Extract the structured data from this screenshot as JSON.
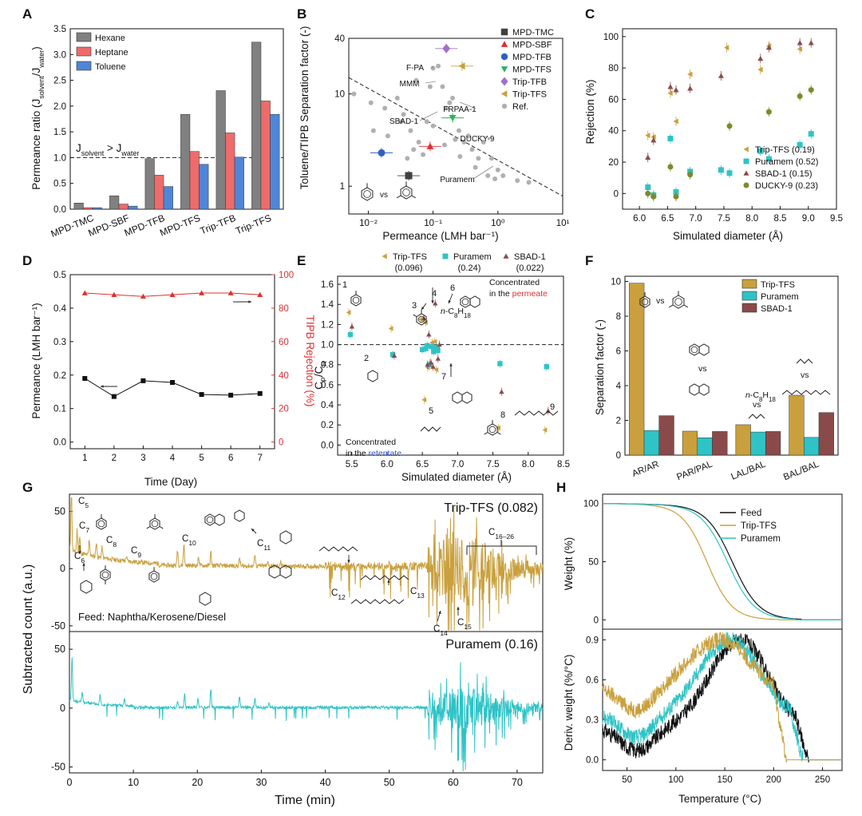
{
  "panel_letters": {
    "a": "A",
    "b": "B",
    "c": "C",
    "d": "D",
    "e": "E",
    "f": "F",
    "g": "G",
    "h": "H"
  },
  "colors": {
    "hexane": "#808080",
    "heptane": "#ee6b6b",
    "toluene": "#4f86d9",
    "trip_tfs": "#c9a03d",
    "puramem": "#2fc3c6",
    "sbad1": "#8a4a4a",
    "ducky9": "#7c8a2a",
    "mpd_tmc": "#404040",
    "mpd_sbf": "#e03030",
    "mpd_tfb": "#3060c0",
    "mpd_tfs": "#30b060",
    "trip_tfb": "#a070c8",
    "ref": "#b0b0b0",
    "feed": "#111111",
    "red": "#e03030",
    "blue": "#2e54c8"
  },
  "chart_data": [
    {
      "panel": "A",
      "type": "bar",
      "categories": [
        "MPD-TMC",
        "MPD-SBF",
        "MPD-TFB",
        "MPD-TFS",
        "Trip-TFB",
        "Trip-TFS"
      ],
      "series": [
        {
          "name": "Hexane",
          "values": [
            0.12,
            0.26,
            0.98,
            1.84,
            2.3,
            3.24
          ]
        },
        {
          "name": "Heptane",
          "values": [
            0.03,
            0.1,
            0.66,
            1.12,
            1.48,
            2.1
          ]
        },
        {
          "name": "Toluene",
          "values": [
            0.03,
            0.06,
            0.44,
            0.87,
            1.01,
            1.84
          ]
        }
      ],
      "ylabel_main": "Permeance ratio (J",
      "ylabel_s1": "solvent",
      "ylabel_mid": "/J",
      "ylabel_s2": "water",
      "ylabel_end": ")",
      "ylim": [
        0,
        3.5
      ],
      "yticks": [
        "0.0",
        "0.5",
        "1.0",
        "1.5",
        "2.0",
        "2.5",
        "3.0",
        "3.5"
      ],
      "reference_line": 1.0,
      "annotation_main": "J",
      "annotation_s1": "solvent",
      "annotation_mid": " > J",
      "annotation_s2": "water"
    },
    {
      "panel": "B",
      "type": "scatter",
      "xscale": "log",
      "yscale": "log",
      "xlabel": "Permeance (LMH bar⁻¹)",
      "ylabel": "Toluene/TIPB Separation factor (-)",
      "xlim": [
        0.005,
        10
      ],
      "ylim": [
        0.5,
        40
      ],
      "xticks": [
        {
          "v": 0.01,
          "t": "10⁻²"
        },
        {
          "v": 0.1,
          "t": "10⁻¹"
        },
        {
          "v": 1,
          "t": "10⁰"
        },
        {
          "v": 10,
          "t": "10¹"
        }
      ],
      "yticks": [
        {
          "v": 1,
          "t": "1"
        },
        {
          "v": 10,
          "t": "10"
        },
        {
          "v": 40,
          "t": "40"
        }
      ],
      "series": [
        {
          "name": "MPD-TMC",
          "x": 0.042,
          "y": 1.3
        },
        {
          "name": "MPD-SBF",
          "x": 0.09,
          "y": 2.7
        },
        {
          "name": "MPD-TFB",
          "x": 0.016,
          "y": 2.3
        },
        {
          "name": "MPD-TFS",
          "x": 0.2,
          "y": 5.5
        },
        {
          "name": "Trip-TFB",
          "x": 0.16,
          "y": 31
        },
        {
          "name": "Trip-TFS",
          "x": 0.28,
          "y": 20
        },
        {
          "name": "Ref.",
          "points": [
            [
              0.006,
              10
            ],
            [
              0.011,
              8
            ],
            [
              0.018,
              7
            ],
            [
              0.028,
              9
            ],
            [
              0.035,
              6
            ],
            [
              0.012,
              4
            ],
            [
              0.02,
              3.5
            ],
            [
              0.045,
              4
            ],
            [
              0.06,
              3
            ],
            [
              0.08,
              5
            ],
            [
              0.1,
              4.5
            ],
            [
              0.12,
              20
            ],
            [
              0.1,
              19
            ],
            [
              0.14,
              12
            ],
            [
              0.16,
              7
            ],
            [
              0.18,
              8
            ],
            [
              0.2,
              9
            ],
            [
              0.25,
              4
            ],
            [
              0.3,
              3
            ],
            [
              0.35,
              3.5
            ],
            [
              0.4,
              2.5
            ],
            [
              0.5,
              2
            ],
            [
              0.6,
              3
            ],
            [
              0.8,
              2
            ],
            [
              1.0,
              1.5
            ],
            [
              1.2,
              1.3
            ],
            [
              0.04,
              2
            ],
            [
              0.05,
              2.5
            ],
            [
              0.07,
              2.2
            ],
            [
              0.15,
              2.8
            ],
            [
              0.22,
              3.2
            ],
            [
              0.26,
              2.1
            ],
            [
              0.45,
              1.6
            ],
            [
              0.7,
              1.3
            ],
            [
              2.0,
              1.15
            ],
            [
              3.0,
              1.1
            ],
            [
              0.9,
              1.2
            ],
            [
              0.032,
              5
            ],
            [
              0.055,
              14
            ],
            [
              0.09,
              12
            ]
          ]
        }
      ],
      "ref_labels": [
        "F-PA",
        "MMM",
        "SBAD-1",
        "FRPAA-1",
        "DUCKY-9",
        "Puramem"
      ],
      "inset_vs": "vs"
    },
    {
      "panel": "C",
      "type": "scatter",
      "xlabel": "Simulated diameter (Å)",
      "ylabel": "Rejection (%)",
      "xlim": [
        5.5,
        9.5
      ],
      "ylim": [
        -10,
        105
      ],
      "xticks": [
        "6.0",
        "6.5",
        "7.0",
        "7.5",
        "8.0",
        "8.5",
        "9.0",
        "9.5"
      ],
      "yticks": [
        "0",
        "20",
        "40",
        "60",
        "80",
        "100"
      ],
      "series": [
        {
          "name": "Trip-TFS (0.19)",
          "x": [
            6.15,
            6.25,
            6.55,
            6.65,
            6.9,
            7.55,
            8.15,
            8.3,
            8.85
          ],
          "y": [
            37,
            36,
            64,
            46,
            76,
            93,
            79,
            94,
            92
          ]
        },
        {
          "name": "Puramem (0.52)",
          "x": [
            6.15,
            6.25,
            6.55,
            6.65,
            6.9,
            7.45,
            7.6,
            8.15,
            8.3,
            8.85,
            9.05
          ],
          "y": [
            4,
            -1,
            35,
            1,
            14,
            15,
            13,
            27,
            22,
            31,
            38
          ]
        },
        {
          "name": "SBAD-1 (0.15)",
          "x": [
            6.15,
            6.25,
            6.55,
            6.65,
            6.9,
            7.45,
            8.15,
            8.3,
            8.85,
            9.05
          ],
          "y": [
            23,
            34,
            68,
            66,
            67,
            75,
            86,
            93,
            96,
            96
          ]
        },
        {
          "name": "DUCKY-9 (0.23)",
          "x": [
            6.15,
            6.25,
            6.55,
            6.65,
            6.9,
            7.6,
            8.3,
            8.85,
            9.05
          ],
          "y": [
            0,
            -2,
            17,
            -2,
            12,
            43,
            52,
            62,
            66
          ]
        }
      ]
    },
    {
      "panel": "D",
      "type": "line",
      "xlabel": "Time (Day)",
      "ylabel": "Permeance (LMH bar⁻¹)",
      "ylabel_right": "TIPB Rejection (%)",
      "x": [
        1,
        2,
        3,
        4,
        5,
        6,
        7
      ],
      "xticks": [
        "1",
        "2",
        "3",
        "4",
        "5",
        "6",
        "7"
      ],
      "yticks": [
        "0.0",
        "0.1",
        "0.2",
        "0.3",
        "0.4",
        "0.5"
      ],
      "yticks_right": [
        "0",
        "20",
        "40",
        "60",
        "80",
        "100"
      ],
      "ylim": [
        -0.02,
        0.5
      ],
      "ylim_right": [
        -4,
        100
      ],
      "series": [
        {
          "name": "Permeance",
          "values": [
            0.19,
            0.136,
            0.183,
            0.178,
            0.142,
            0.14,
            0.145
          ]
        },
        {
          "name": "TIPB Rejection",
          "values": [
            89,
            88,
            87,
            88,
            89,
            89,
            88
          ]
        }
      ]
    },
    {
      "panel": "E",
      "type": "scatter",
      "xlabel": "Simulated diameter (Å)",
      "ylabel_main": "C",
      "ylabel_s1": "P",
      "ylabel_mid": "/C",
      "ylabel_s2": "R",
      "xlim": [
        5.3,
        8.5
      ],
      "ylim": [
        -0.1,
        1.68
      ],
      "xticks": [
        "5.5",
        "6.0",
        "6.5",
        "7.0",
        "7.5",
        "8.0",
        "8.5"
      ],
      "yticks": [
        "0.0",
        "0.2",
        "0.4",
        "0.6",
        "0.8",
        "1.0",
        "1.2",
        "1.4",
        "1.6"
      ],
      "reference_line": 1.0,
      "legend": [
        {
          "name": "Trip-TFS",
          "sub": "(0.096)"
        },
        {
          "name": "Puramem",
          "sub": "(0.24)"
        },
        {
          "name": "SBAD-1",
          "sub": "(0.022)"
        }
      ],
      "series": [
        {
          "name": "Trip-TFS",
          "x": [
            5.48,
            6.08,
            6.5,
            6.57,
            6.6,
            6.66,
            6.7,
            6.72,
            6.55,
            6.63,
            7.6,
            8.26
          ],
          "y": [
            1.32,
            1.16,
            1.25,
            1.22,
            0.77,
            1.02,
            1.03,
            0.75,
            0.45,
            0.82,
            0.17,
            0.15
          ]
        },
        {
          "name": "Puramem",
          "x": [
            5.48,
            6.08,
            6.5,
            6.57,
            6.6,
            6.66,
            6.7,
            6.72,
            6.55,
            6.63,
            7.6,
            8.26
          ],
          "y": [
            1.1,
            0.9,
            0.95,
            0.99,
            0.8,
            0.93,
            0.97,
            0.94,
            0.96,
            0.98,
            0.81,
            0.78
          ]
        },
        {
          "name": "SBAD-1",
          "x": [
            5.48,
            6.08,
            6.5,
            6.57,
            6.6,
            6.66,
            6.7,
            6.72,
            6.55,
            6.63,
            7.6,
            8.26
          ],
          "y": [
            1.18,
            0.89,
            1.26,
            1.1,
            0.82,
            1.41,
            0.86,
            1.0,
            0.8,
            0.78,
            0.53,
            0.34
          ]
        }
      ],
      "labels": [
        "1",
        "2",
        "3",
        "4",
        "5",
        "6",
        "7",
        "8",
        "9"
      ],
      "text_top": "Concentrated",
      "text_top2": "in the ",
      "text_top_color": "permeate",
      "text_bot": "Concentrated",
      "text_bot2": "in the ",
      "text_bot_color": "retentate",
      "nc8_n": "n",
      "nc8_rest": "-C",
      "nc8_s1": "8",
      "nc8_h": "H",
      "nc8_s2": "18"
    },
    {
      "panel": "F",
      "type": "bar",
      "categories": [
        "AR/AR",
        "PAR/PAL",
        "LAL/BAL",
        "BAL/BAL"
      ],
      "series": [
        {
          "name": "Trip-TFS",
          "values": [
            9.9,
            1.38,
            1.75,
            3.45
          ]
        },
        {
          "name": "Puramem",
          "values": [
            1.42,
            1.0,
            1.33,
            1.02
          ]
        },
        {
          "name": "SBAD-1",
          "values": [
            2.27,
            1.36,
            1.36,
            2.45
          ]
        }
      ],
      "ylabel": "Separation factor (-)",
      "ylim": [
        0,
        10.3
      ],
      "yticks": [
        "0",
        "2",
        "4",
        "6",
        "8",
        "10"
      ],
      "vs": "vs",
      "nc8_n": "n",
      "nc8_rest": "-C",
      "nc8_s1": "8",
      "nc8_h": "H",
      "nc8_s2": "18"
    },
    {
      "panel": "G",
      "type": "line",
      "xlabel": "Time (min)",
      "ylabel": "Subtracted count (a.u.)",
      "xlim": [
        0,
        74
      ],
      "ylim_top": [
        -55,
        65
      ],
      "ylim_bottom": [
        -55,
        65
      ],
      "xticks": [
        "0",
        "10",
        "20",
        "30",
        "40",
        "50",
        "60",
        "70"
      ],
      "yticks_top": [
        "-50",
        "0",
        "50"
      ],
      "yticks_bottom": [
        "-50",
        "0",
        "50"
      ],
      "series": [
        {
          "name": "Trip-TFS (0.082)"
        },
        {
          "name": "Puramem (0.16)"
        }
      ],
      "feed_label": "Feed: Naphtha/Kerosene/Diesel",
      "carbon_labels": [
        "C5",
        "C6",
        "C7",
        "C8",
        "C9",
        "C10",
        "C11",
        "C12",
        "C13",
        "C14",
        "C15"
      ],
      "c16_label": "C",
      "c16_sub": "16–26"
    },
    {
      "panel": "H",
      "type": "line",
      "xlabel": "Temperature (°C)",
      "ylabel_top": "Weight (%)",
      "ylabel_bottom": "Deriv. weight (%/°C)",
      "xlim": [
        25,
        270
      ],
      "xticks": [
        "50",
        "100",
        "150",
        "200",
        "250"
      ],
      "yticks_top": [
        "0",
        "50",
        "100"
      ],
      "yticks_bottom": [
        "0.0",
        "0.3",
        "0.6",
        "0.9"
      ],
      "series": [
        {
          "name": "Feed"
        },
        {
          "name": "Trip-TFS"
        },
        {
          "name": "Puramem"
        }
      ]
    }
  ]
}
